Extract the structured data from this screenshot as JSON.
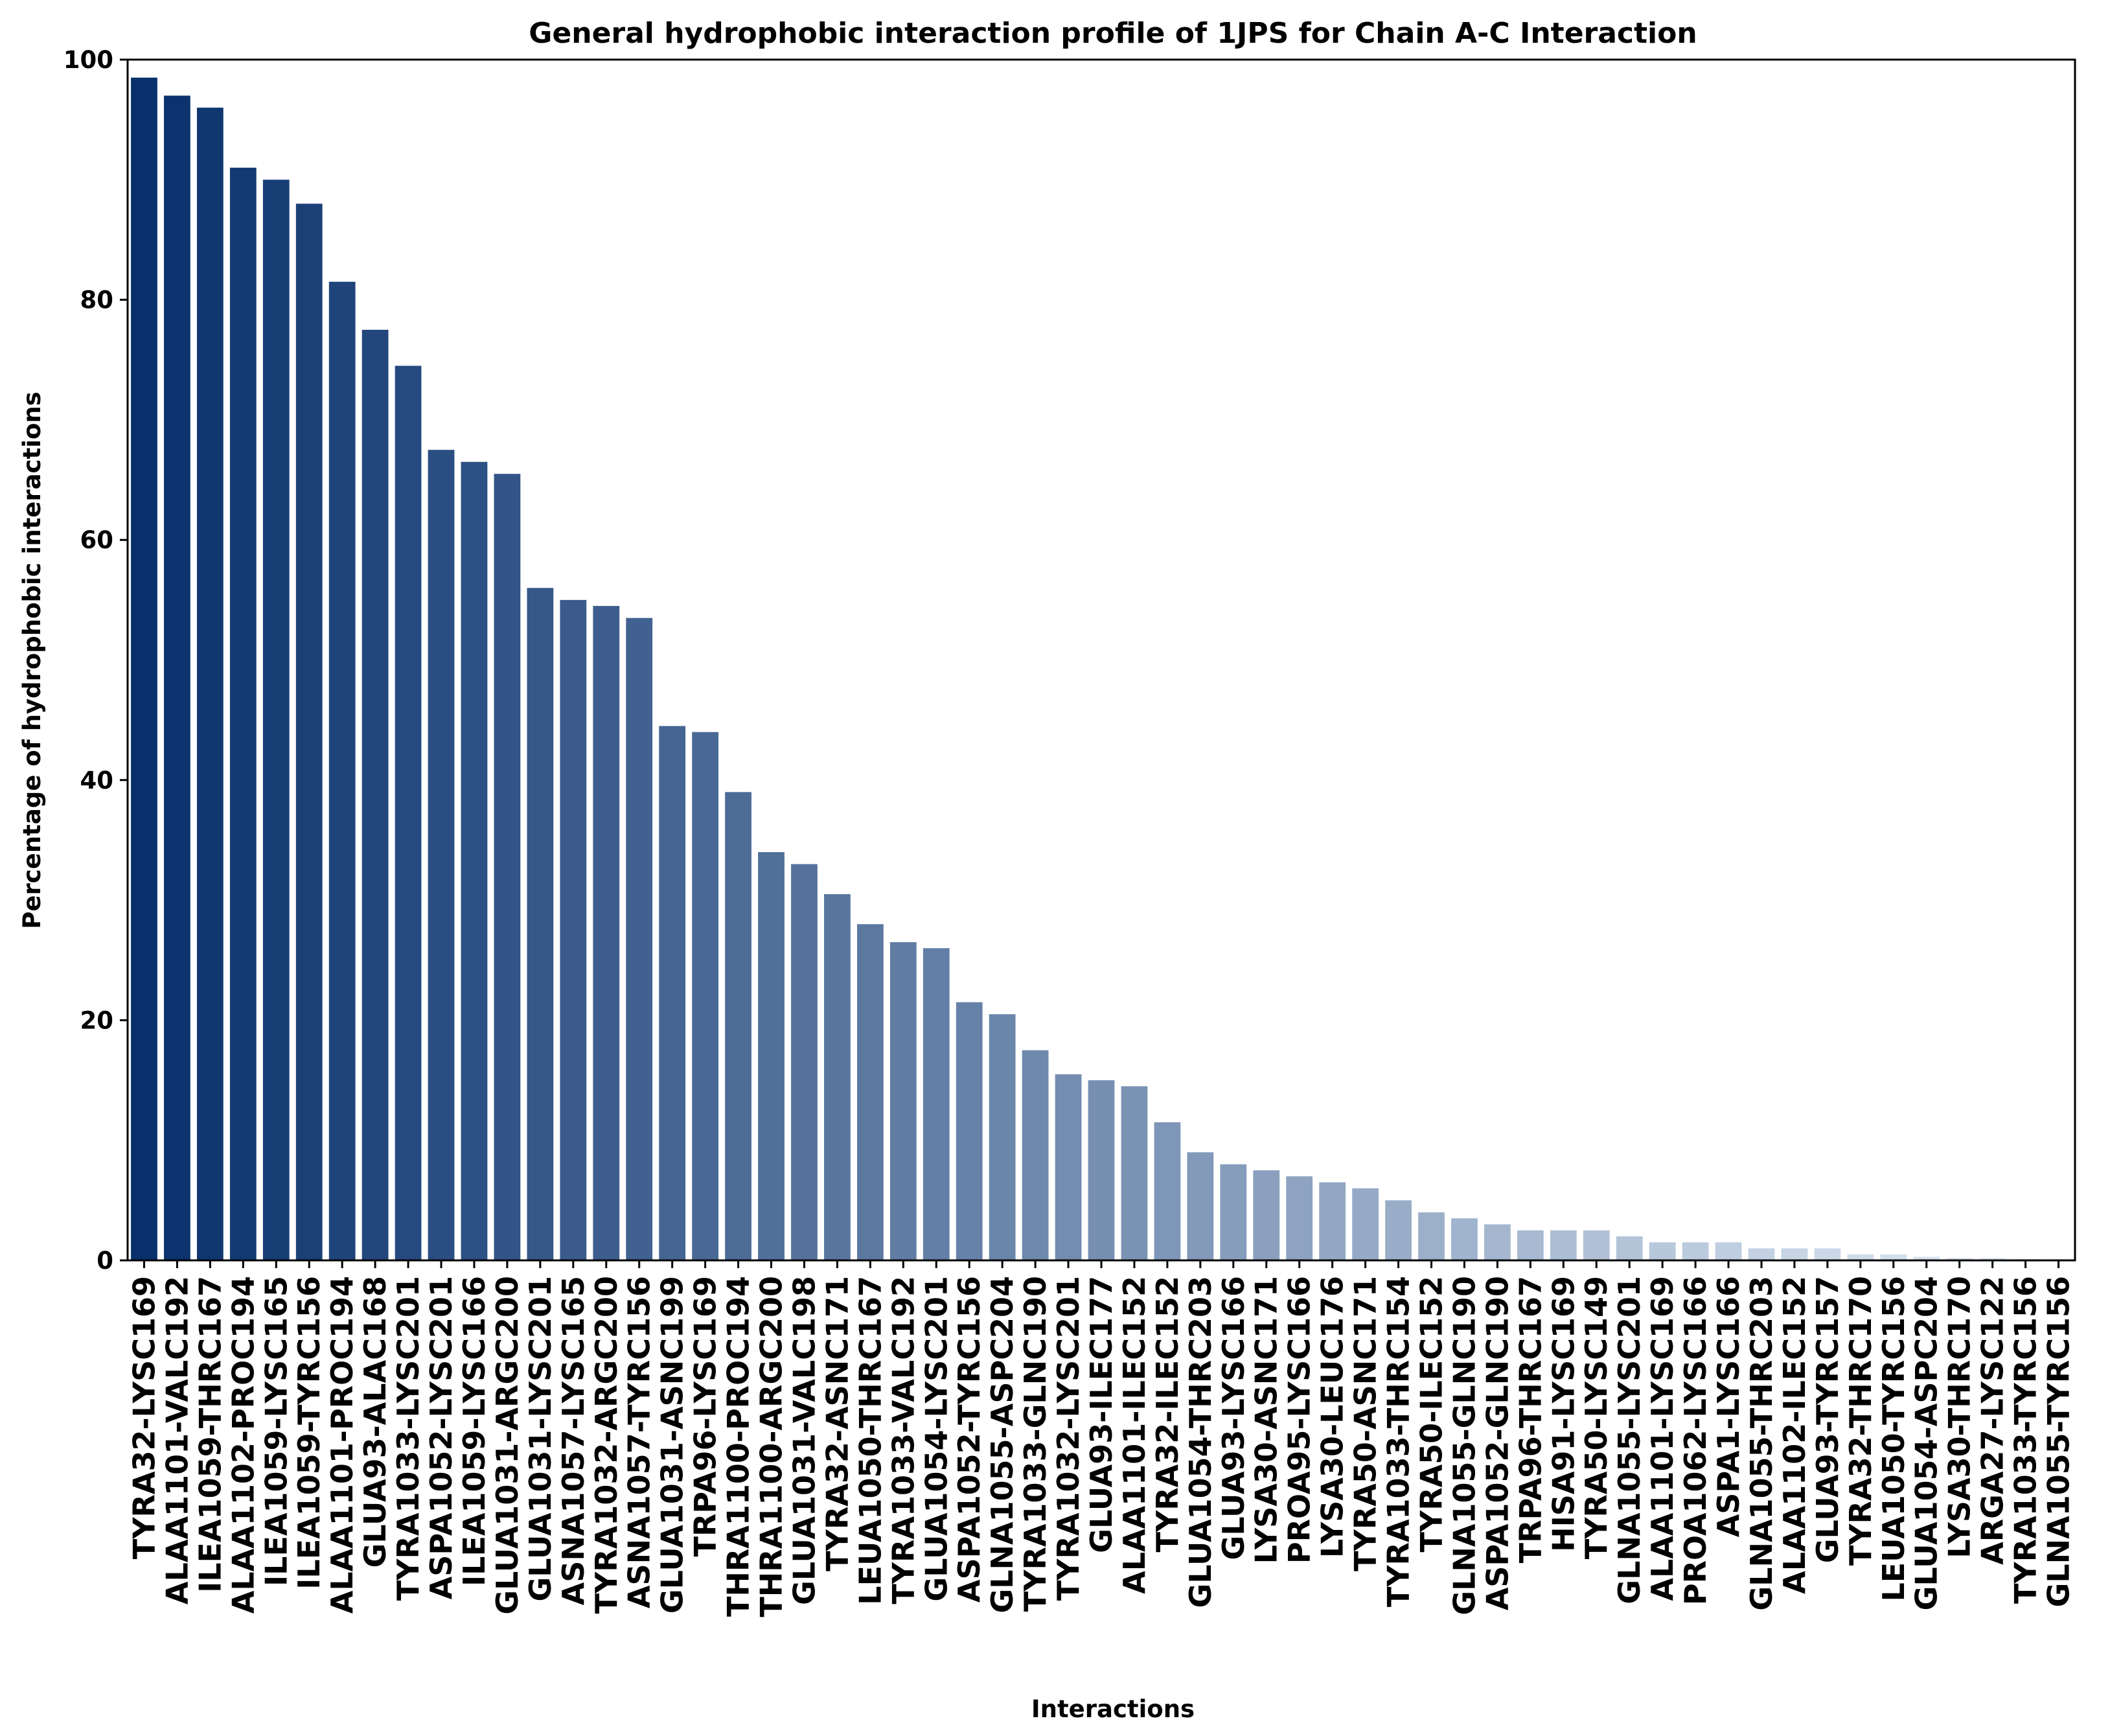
{
  "chart_data": {
    "type": "bar",
    "title": "General hydrophobic interaction profile of 1JPS for Chain A-C Interaction",
    "xlabel": "Interactions",
    "ylabel": "Percentage of hydrophobic interactions",
    "ylim": [
      0,
      100
    ],
    "yticks": [
      "0",
      "20",
      "40",
      "60",
      "80",
      "100"
    ],
    "grid": false,
    "colormap": "Blues (dark to light)",
    "color_start": "#08306b",
    "color_end": "#e5eff9",
    "categories": [
      "TYRA32-LYSC169",
      "ALAA1101-VALC192",
      "ILEA1059-THRC167",
      "ALAA1102-PROC194",
      "ILEA1059-LYSC165",
      "ILEA1059-TYRC156",
      "ALAA1101-PROC194",
      "GLUA93-ALAC168",
      "TYRA1033-LYSC201",
      "ASPA1052-LYSC201",
      "ILEA1059-LYSC166",
      "GLUA1031-ARGC200",
      "GLUA1031-LYSC201",
      "ASNA1057-LYSC165",
      "TYRA1032-ARGC200",
      "ASNA1057-TYRC156",
      "GLUA1031-ASNC199",
      "TRPA96-LYSC169",
      "THRA1100-PROC194",
      "THRA1100-ARGC200",
      "GLUA1031-VALC198",
      "TYRA32-ASNC171",
      "LEUA1050-THRC167",
      "TYRA1033-VALC192",
      "GLUA1054-LYSC201",
      "ASPA1052-TYRC156",
      "GLNA1055-ASPC204",
      "TYRA1033-GLNC190",
      "TYRA1032-LYSC201",
      "GLUA93-ILEC177",
      "ALAA1101-ILEC152",
      "TYRA32-ILEC152",
      "GLUA1054-THRC203",
      "GLUA93-LYSC166",
      "LYSA30-ASNC171",
      "PROA95-LYSC166",
      "LYSA30-LEUC176",
      "TYRA50-ASNC171",
      "TYRA1033-THRC154",
      "TYRA50-ILEC152",
      "GLNA1055-GLNC190",
      "ASPA1052-GLNC190",
      "TRPA96-THRC167",
      "HISA91-LYSC169",
      "TYRA50-LYSC149",
      "GLNA1055-LYSC201",
      "ALAA1101-LYSC169",
      "PROA1062-LYSC166",
      "ASPA1-LYSC166",
      "GLNA1055-THRC203",
      "ALAA1102-ILEC152",
      "GLUA93-TYRC157",
      "TYRA32-THRC170",
      "LEUA1050-TYRC156",
      "GLUA1054-ASPC204",
      "LYSA30-THRC170",
      "ARGA27-LYSC122",
      "TYRA1033-TYRC156",
      "GLNA1055-TYRC156"
    ],
    "values": [
      98.5,
      97.0,
      96.0,
      91.0,
      90.0,
      88.0,
      81.5,
      77.5,
      74.5,
      67.5,
      66.5,
      65.5,
      56.0,
      55.0,
      54.5,
      53.5,
      44.5,
      44.0,
      39.0,
      34.0,
      33.0,
      30.5,
      28.0,
      26.5,
      26.0,
      21.5,
      20.5,
      17.5,
      15.5,
      15.0,
      14.5,
      11.5,
      9.0,
      8.0,
      7.5,
      7.0,
      6.5,
      6.0,
      5.0,
      4.0,
      3.5,
      3.0,
      2.5,
      2.5,
      2.5,
      2.0,
      1.5,
      1.5,
      1.5,
      1.0,
      1.0,
      1.0,
      0.5,
      0.5,
      0.3,
      0.2,
      0.2,
      0.1,
      0.1
    ]
  }
}
